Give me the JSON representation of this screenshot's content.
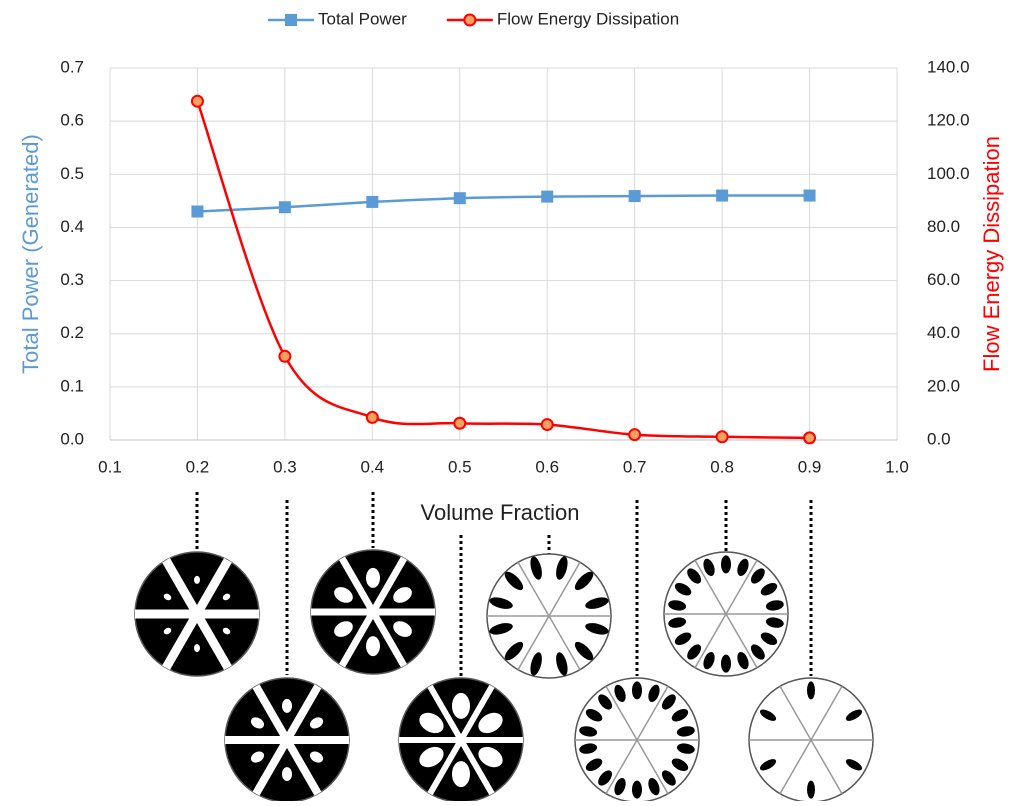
{
  "chart_data": {
    "type": "line",
    "x_label": "Volume Fraction",
    "y_label": "Total Power (Generated)",
    "y2_label": "Flow Energy Dissipation",
    "x": [
      0.2,
      0.3,
      0.4,
      0.5,
      0.6,
      0.7,
      0.8,
      0.9
    ],
    "series": [
      {
        "name": "Total Power",
        "color": "#5b9bd5",
        "marker": "square",
        "values": [
          0.43,
          0.438,
          0.448,
          0.455,
          0.458,
          0.459,
          0.46,
          0.46
        ]
      },
      {
        "name": "Flow Energy Dissipation",
        "color": "#ff0000",
        "marker": "circle",
        "axis": "y2",
        "values": [
          127.5,
          31.5,
          8.5,
          6.3,
          5.8,
          2.0,
          1.2,
          0.8
        ]
      }
    ],
    "xlim": [
      0.1,
      1.0
    ],
    "xticks": [
      0.1,
      0.2,
      0.3,
      0.4,
      0.5,
      0.6,
      0.7,
      0.8,
      0.9,
      {
        "value": 1.0,
        "label": "1.0"
      }
    ],
    "ylim": [
      0,
      0.7
    ],
    "yticks": [
      {
        "value": 0,
        "label": "0.0"
      },
      0.1,
      0.2,
      0.3,
      0.4,
      0.5,
      0.6,
      0.7
    ],
    "y2lim": [
      0,
      140
    ],
    "y2ticks": [
      {
        "value": 0,
        "label": "0.0"
      },
      {
        "value": 20,
        "label": "20.0"
      },
      {
        "value": 40,
        "label": "40.0"
      },
      {
        "value": 60,
        "label": "60.0"
      },
      {
        "value": 80,
        "label": "80.0"
      },
      {
        "value": 100,
        "label": "100.0"
      },
      {
        "value": 120,
        "label": "120.0"
      },
      {
        "value": 140,
        "label": "140.0"
      }
    ],
    "grid": true,
    "smooth": true,
    "legend": "top"
  }
}
